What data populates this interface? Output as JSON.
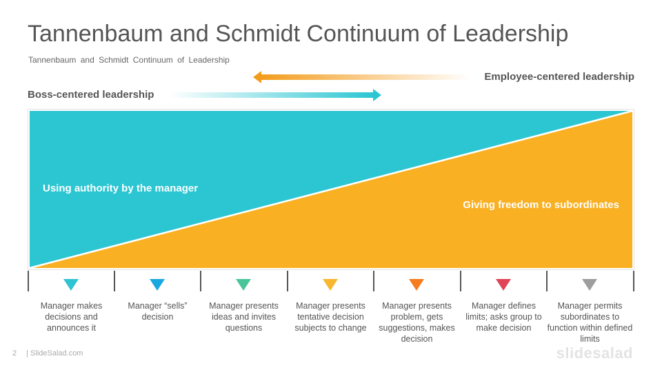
{
  "title": "Tannenbaum and Schmidt Continuum of Leadership",
  "subtitle": "Tannenbaum and Schmidt Continuum of Leadership",
  "boss_label": "Boss-centered leadership",
  "employee_label": "Employee-centered leadership",
  "regions": {
    "manager": "Using authority by the manager",
    "subordinates": "Giving freedom to subordinates"
  },
  "colors": {
    "teal": "#2cc6d2",
    "orange": "#f9b023"
  },
  "steps": [
    {
      "text": "Manager makes decisions and announces it",
      "color": "#2fc4d2",
      "icon": "down-triangle-icon"
    },
    {
      "text": "Manager “sells” decision",
      "color": "#1aa8e0",
      "icon": "down-triangle-icon"
    },
    {
      "text": "Manager presents ideas and invites questions",
      "color": "#4cc49a",
      "icon": "down-triangle-icon"
    },
    {
      "text": "Manager presents tentative decision subjects to change",
      "color": "#f7b731",
      "icon": "down-triangle-icon"
    },
    {
      "text": "Manager presents problem, gets suggestions, makes decision",
      "color": "#f57c1f",
      "icon": "down-triangle-icon"
    },
    {
      "text": "Manager defines limits; asks group to make decision",
      "color": "#df4457",
      "icon": "down-triangle-icon"
    },
    {
      "text": "Manager permits subordinates to function within defined limits",
      "color": "#9e9e9e",
      "icon": "down-triangle-icon"
    }
  ],
  "footer": {
    "page": "2",
    "site": "| SlideSalad.com",
    "logo": "slidesalad"
  }
}
